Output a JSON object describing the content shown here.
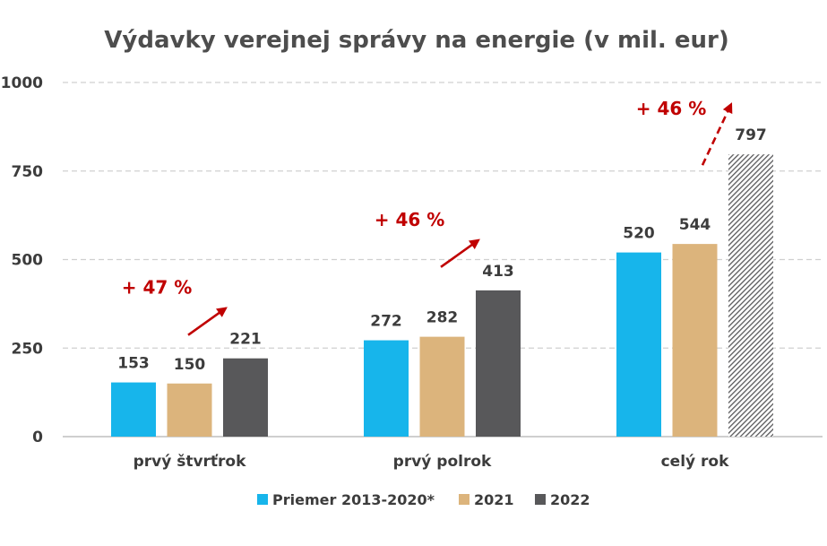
{
  "chart_data": {
    "type": "bar",
    "title": "Výdavky verejnej správy na energie (v mil. eur)",
    "categories": [
      "prvý štvrťrok",
      "prvý polrok",
      "celý rok"
    ],
    "series": [
      {
        "name": "Priemer 2013-2020*",
        "color": "#17b5eb",
        "values": [
          153,
          272,
          520
        ]
      },
      {
        "name": "2021",
        "color": "#dcb47c",
        "values": [
          150,
          282,
          544
        ]
      },
      {
        "name": "2022",
        "color": "#58585a",
        "values": [
          221,
          413,
          797
        ],
        "hatched_last": true
      }
    ],
    "ylim": [
      0,
      1000
    ],
    "yticks": [
      "0",
      "250",
      "500",
      "750",
      "1000"
    ],
    "ytick_values": [
      0,
      250,
      500,
      750,
      1000
    ],
    "grid": true,
    "legend_position": "bottom",
    "annotations": [
      {
        "text": "+ 47 %",
        "category": "prvý štvrťrok",
        "dashed": false
      },
      {
        "text": "+ 46 %",
        "category": "prvý polrok",
        "dashed": false
      },
      {
        "text": "+ 46 %",
        "category": "celý rok",
        "dashed": true
      }
    ],
    "annotation_color": "#c00000"
  }
}
